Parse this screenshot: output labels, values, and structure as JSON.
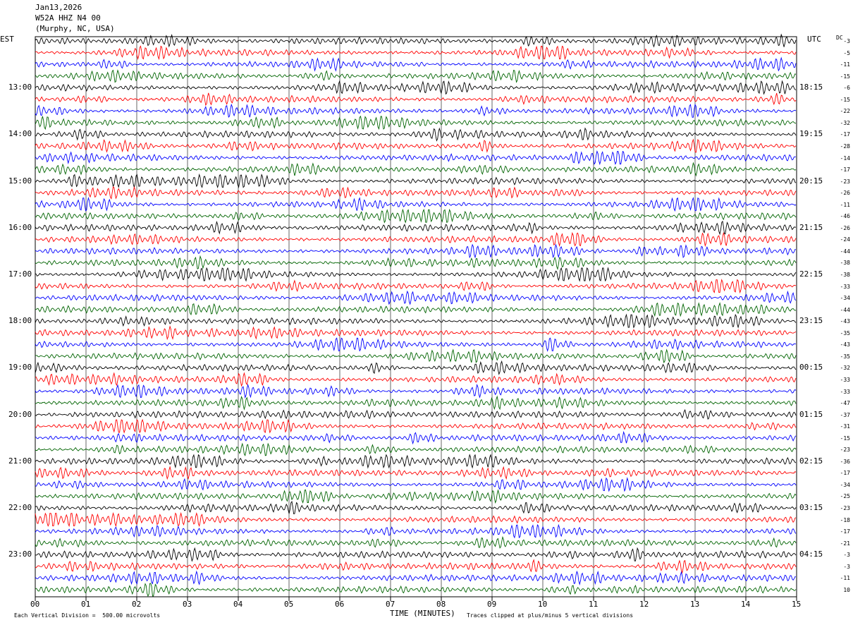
{
  "header": {
    "date": "Jan13,2026",
    "station": "W52A HHZ N4 00",
    "location": "(Murphy, NC, USA)"
  },
  "axes": {
    "left_label": "EST",
    "right_label": "UTC",
    "dc_label": "DC",
    "xlabel": "TIME (MINUTES)",
    "footer_left": "Each Vertical Division =  500.00 microvolts",
    "footer_right": "Traces clipped at plus/minus 5 vertical divisions"
  },
  "chart_data": {
    "type": "line",
    "title": "W52A HHZ N4 00",
    "xlabel": "TIME (MINUTES)",
    "xlim": [
      0,
      15
    ],
    "x_ticks": [
      "00",
      "01",
      "02",
      "03",
      "04",
      "05",
      "06",
      "07",
      "08",
      "09",
      "10",
      "11",
      "12",
      "13",
      "14",
      "15"
    ],
    "left_time_labels": [
      "13:00",
      "14:00",
      "15:00",
      "16:00",
      "17:00",
      "18:00",
      "19:00",
      "20:00",
      "21:00",
      "22:00",
      "23:00"
    ],
    "right_time_labels": [
      "18:15",
      "19:15",
      "20:15",
      "21:15",
      "22:15",
      "23:15",
      "00:15",
      "01:15",
      "02:15",
      "03:15",
      "04:15"
    ],
    "trace_count": 48,
    "trace_colors": [
      "#000000",
      "#ff0000",
      "#0000ff",
      "#006400"
    ],
    "dc_offsets": [
      "-3",
      "-5",
      "-11",
      "-15",
      "-6",
      "-15",
      "-22",
      "-32",
      "-17",
      "-28",
      "-14",
      "-17",
      "-23",
      "-26",
      "-11",
      "-46",
      "-26",
      "-24",
      "-44",
      "-38",
      "-38",
      "-33",
      "-34",
      "-44",
      "-43",
      "-35",
      "-43",
      "-35",
      "-32",
      "-33",
      "-33",
      "-47",
      "-37",
      "-31",
      "-15",
      "-23",
      "-36",
      "-17",
      "-34",
      "-25",
      "-23",
      "-18",
      "-17",
      "-21",
      "-3",
      "-3",
      "-11",
      "10"
    ],
    "grid": "vertical"
  }
}
